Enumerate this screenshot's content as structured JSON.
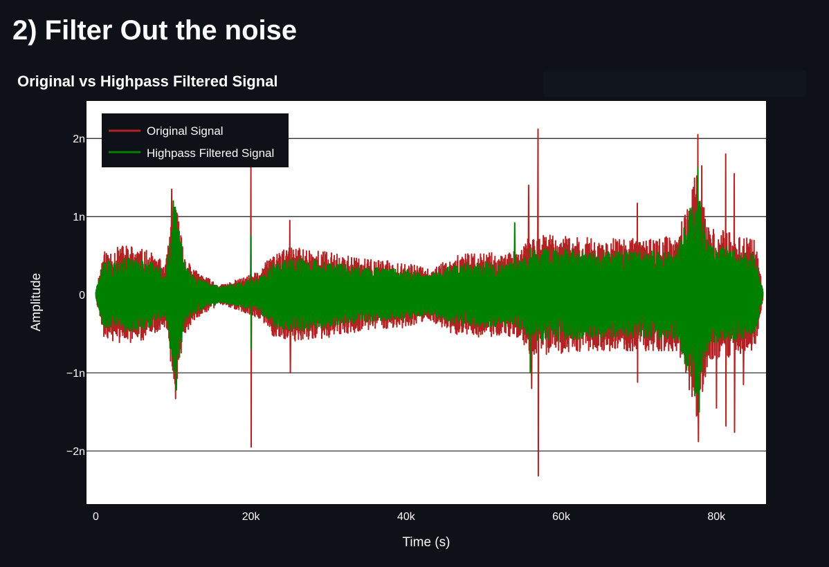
{
  "page": {
    "title": "2) Filter Out the noise"
  },
  "chart_data": {
    "type": "line",
    "title": "Original vs Highpass Filtered Signal",
    "xlabel": "Time (s)",
    "ylabel": "Amplitude",
    "xlim": [
      -1200,
      86400
    ],
    "ylim": [
      -2.68,
      2.48
    ],
    "x_ticks": [
      {
        "value": 0,
        "label": "0"
      },
      {
        "value": 20000,
        "label": "20k"
      },
      {
        "value": 40000,
        "label": "40k"
      },
      {
        "value": 60000,
        "label": "60k"
      },
      {
        "value": 80000,
        "label": "80k"
      }
    ],
    "y_ticks": [
      {
        "value": 2,
        "label": "2n"
      },
      {
        "value": 1,
        "label": "1n"
      },
      {
        "value": 0,
        "label": "0"
      },
      {
        "value": -1,
        "label": "−1n"
      },
      {
        "value": -2,
        "label": "−2n"
      }
    ],
    "grid": true,
    "legend_position": "top-left",
    "background_color": "#ffffff",
    "series": [
      {
        "name": "Original Signal",
        "color": "#b22222",
        "envelope": [
          {
            "x": 0,
            "a": 0.05
          },
          {
            "x": 1000,
            "a": 0.55
          },
          {
            "x": 4000,
            "a": 0.65
          },
          {
            "x": 7000,
            "a": 0.55
          },
          {
            "x": 9000,
            "a": 0.4
          },
          {
            "x": 10200,
            "a": 1.25
          },
          {
            "x": 11500,
            "a": 0.5
          },
          {
            "x": 13000,
            "a": 0.3
          },
          {
            "x": 16000,
            "a": 0.12
          },
          {
            "x": 18500,
            "a": 0.2
          },
          {
            "x": 21000,
            "a": 0.3
          },
          {
            "x": 23000,
            "a": 0.55
          },
          {
            "x": 26000,
            "a": 0.62
          },
          {
            "x": 30000,
            "a": 0.55
          },
          {
            "x": 35000,
            "a": 0.45
          },
          {
            "x": 40000,
            "a": 0.42
          },
          {
            "x": 43000,
            "a": 0.32
          },
          {
            "x": 46000,
            "a": 0.5
          },
          {
            "x": 50000,
            "a": 0.55
          },
          {
            "x": 53000,
            "a": 0.52
          },
          {
            "x": 55000,
            "a": 0.6
          },
          {
            "x": 56000,
            "a": 0.78
          },
          {
            "x": 60000,
            "a": 0.75
          },
          {
            "x": 65000,
            "a": 0.72
          },
          {
            "x": 70000,
            "a": 0.72
          },
          {
            "x": 75000,
            "a": 0.75
          },
          {
            "x": 77500,
            "a": 1.6
          },
          {
            "x": 79000,
            "a": 0.85
          },
          {
            "x": 82000,
            "a": 0.8
          },
          {
            "x": 85000,
            "a": 0.7
          },
          {
            "x": 86000,
            "a": 0.05
          }
        ],
        "spikes": [
          {
            "x": 9800,
            "y": 1.35
          },
          {
            "x": 10300,
            "y": -1.33
          },
          {
            "x": 20000,
            "y": 1.65
          },
          {
            "x": 20030,
            "y": -1.95
          },
          {
            "x": 25000,
            "y": 0.95
          },
          {
            "x": 25100,
            "y": -1.0
          },
          {
            "x": 55800,
            "y": 1.4
          },
          {
            "x": 56200,
            "y": -1.2
          },
          {
            "x": 57000,
            "y": 2.12
          },
          {
            "x": 57050,
            "y": -2.32
          },
          {
            "x": 69800,
            "y": 1.17
          },
          {
            "x": 69850,
            "y": -1.12
          },
          {
            "x": 77600,
            "y": 2.05
          },
          {
            "x": 77700,
            "y": -1.88
          },
          {
            "x": 78100,
            "y": 1.65
          },
          {
            "x": 81200,
            "y": 1.8
          },
          {
            "x": 81250,
            "y": -1.68
          },
          {
            "x": 82300,
            "y": 1.55
          },
          {
            "x": 82350,
            "y": -1.76
          },
          {
            "x": 80000,
            "y": -1.45
          },
          {
            "x": 83500,
            "y": -1.15
          }
        ]
      },
      {
        "name": "Highpass Filtered Signal",
        "color": "#008000",
        "envelope": [
          {
            "x": 0,
            "a": 0.05
          },
          {
            "x": 1000,
            "a": 0.42
          },
          {
            "x": 4000,
            "a": 0.48
          },
          {
            "x": 7000,
            "a": 0.42
          },
          {
            "x": 9000,
            "a": 0.3
          },
          {
            "x": 10200,
            "a": 1.15
          },
          {
            "x": 11500,
            "a": 0.38
          },
          {
            "x": 13000,
            "a": 0.22
          },
          {
            "x": 16000,
            "a": 0.1
          },
          {
            "x": 18500,
            "a": 0.15
          },
          {
            "x": 21000,
            "a": 0.22
          },
          {
            "x": 23000,
            "a": 0.42
          },
          {
            "x": 26000,
            "a": 0.48
          },
          {
            "x": 30000,
            "a": 0.42
          },
          {
            "x": 35000,
            "a": 0.35
          },
          {
            "x": 40000,
            "a": 0.32
          },
          {
            "x": 43000,
            "a": 0.25
          },
          {
            "x": 46000,
            "a": 0.38
          },
          {
            "x": 50000,
            "a": 0.42
          },
          {
            "x": 53000,
            "a": 0.4
          },
          {
            "x": 55000,
            "a": 0.45
          },
          {
            "x": 56000,
            "a": 0.6
          },
          {
            "x": 60000,
            "a": 0.58
          },
          {
            "x": 65000,
            "a": 0.55
          },
          {
            "x": 70000,
            "a": 0.55
          },
          {
            "x": 75000,
            "a": 0.58
          },
          {
            "x": 77500,
            "a": 1.45
          },
          {
            "x": 79000,
            "a": 0.65
          },
          {
            "x": 82000,
            "a": 0.6
          },
          {
            "x": 85000,
            "a": 0.52
          },
          {
            "x": 86000,
            "a": 0.05
          }
        ],
        "spikes": [
          {
            "x": 10000,
            "y": 1.2
          },
          {
            "x": 10400,
            "y": -1.22
          },
          {
            "x": 20000,
            "y": 0.75
          },
          {
            "x": 20030,
            "y": -0.7
          },
          {
            "x": 54000,
            "y": 0.92
          },
          {
            "x": 56000,
            "y": -1.0
          },
          {
            "x": 77600,
            "y": 1.62
          },
          {
            "x": 77800,
            "y": -1.5
          }
        ]
      }
    ]
  }
}
